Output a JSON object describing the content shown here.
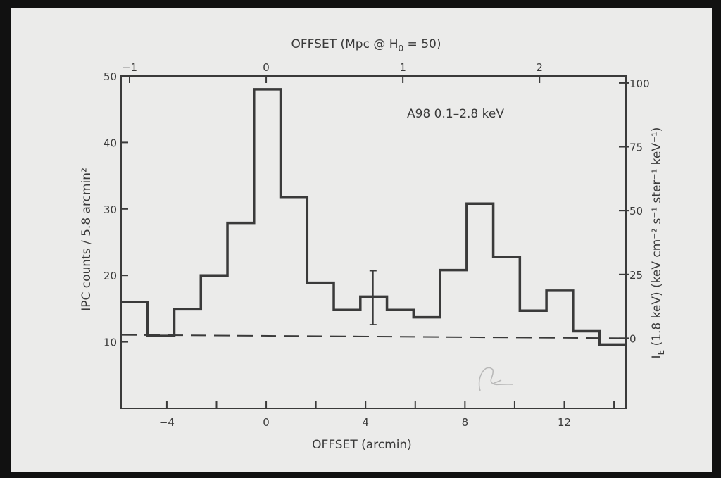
{
  "chart_data": {
    "type": "histogram-step",
    "annotation": "A98  0.1–2.8 keV",
    "xlabel": "OFFSET (arcmin)",
    "xlabel_top": {
      "before": "OFFSET (Mpc @ H",
      "sub": "0",
      "after": " = 50)"
    },
    "ylabel": "IPC counts / 5.8 arcmin²",
    "ylabel_right": {
      "main": "I",
      "sub": "E",
      "rest": " (1.8 keV) (keV cm⁻² s⁻¹ ster⁻¹ keV⁻¹)"
    },
    "xlim": [
      -5.84,
      14.48
    ],
    "ylim": [
      0,
      50
    ],
    "x_ticks": [
      -4,
      0,
      4,
      8,
      12
    ],
    "x_minor_ticks": [
      -2,
      2,
      6,
      10,
      14
    ],
    "y_ticks": [
      10,
      20,
      30,
      40,
      50
    ],
    "top_ticks_mpc": [
      -1,
      0,
      1,
      2
    ],
    "top_arcmin_per_mpc": 5.5,
    "right_ticks": [
      0,
      25,
      50,
      75,
      100
    ],
    "right_axis_zero_in_counts": 10.55,
    "right_axis_counts_per_unit": 0.384,
    "bin_edges_start": -5.84,
    "bin_width": 1.07,
    "values": [
      16.0,
      10.9,
      14.9,
      20.0,
      27.9,
      48.0,
      31.8,
      18.9,
      14.8,
      16.8,
      14.8,
      13.7,
      20.8,
      30.8,
      22.8,
      14.7,
      17.7,
      11.6,
      9.6
    ],
    "error_bar": {
      "x": 4.3,
      "y": 16.8,
      "low": 12.6,
      "high": 20.7
    },
    "background_level": {
      "x": [
        -5.84,
        14.48
      ],
      "y": [
        11.06,
        10.55
      ],
      "style": "dashed"
    },
    "grid": false,
    "line_color": "#3a3a3a"
  }
}
